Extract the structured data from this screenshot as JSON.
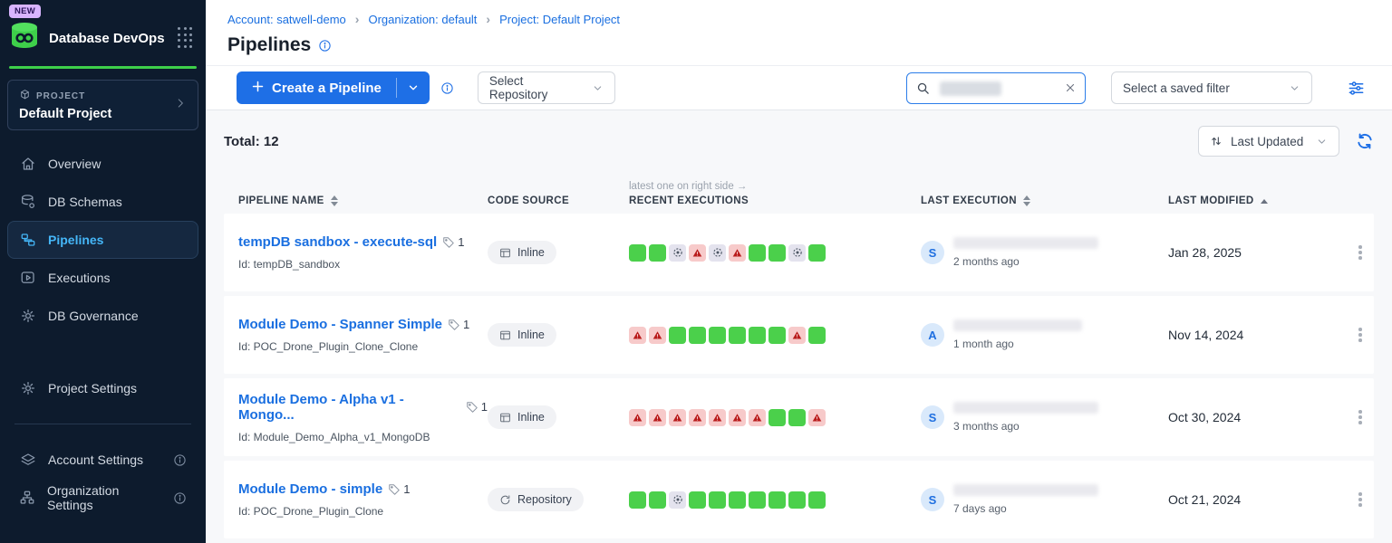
{
  "colors": {
    "sidebar_bg": "#0d1b2d",
    "accent_blue": "#1e6fe6",
    "link_blue": "#1a6fe0",
    "brand_green": "#3ed04a",
    "active_blue": "#45b6f7",
    "badge_bg": "#d8b4fe",
    "badge_text": "#2a1458",
    "success_green": "#4bd04b",
    "fail_bg": "#f7caca",
    "fail_red": "#b91c1c",
    "skip_bg": "#e4e3ee",
    "skip_fg": "#4b5563"
  },
  "sidebar": {
    "badge": "NEW",
    "app_title": "Database DevOps",
    "project": {
      "label": "PROJECT",
      "name": "Default Project"
    },
    "nav": [
      {
        "label": "Overview"
      },
      {
        "label": "DB Schemas"
      },
      {
        "label": "Pipelines"
      },
      {
        "label": "Executions"
      },
      {
        "label": "DB Governance"
      }
    ],
    "nav2": [
      {
        "label": "Project Settings"
      }
    ],
    "nav3": [
      {
        "label": "Account Settings"
      },
      {
        "label": "Organization Settings"
      }
    ]
  },
  "header": {
    "breadcrumbs": [
      {
        "label": "Account: satwell-demo"
      },
      {
        "label": "Organization: default"
      },
      {
        "label": "Project: Default Project"
      }
    ],
    "title": "Pipelines"
  },
  "toolbar": {
    "create_label": "Create a Pipeline",
    "repo_select": "Select Repository",
    "filter_select": "Select a saved filter"
  },
  "list": {
    "total": "Total: 12",
    "sort": "Last Updated",
    "note": "latest one on right side →",
    "columns": {
      "name": "PIPELINE NAME",
      "source": "CODE SOURCE",
      "executions": "RECENT EXECUTIONS",
      "last_execution": "LAST EXECUTION",
      "last_modified": "LAST MODIFIED"
    },
    "rows": [
      {
        "name": "tempDB sandbox - execute-sql",
        "tag_count": "1",
        "id": "Id: tempDB_sandbox",
        "source": "Inline",
        "executions": [
          "success",
          "success",
          "skipped",
          "failed",
          "skipped",
          "failed",
          "success",
          "success",
          "skipped",
          "success"
        ],
        "avatar": "S",
        "executed_ago": "2 months ago",
        "modified": "Jan 28, 2025"
      },
      {
        "name": "Module Demo - Spanner Simple",
        "tag_count": "1",
        "id": "Id: POC_Drone_Plugin_Clone_Clone",
        "source": "Inline",
        "executions": [
          "failed",
          "failed",
          "success",
          "success",
          "success",
          "success",
          "success",
          "success",
          "failed",
          "success"
        ],
        "avatar": "A",
        "executed_ago": "1 month ago",
        "modified": "Nov 14, 2024"
      },
      {
        "name": "Module Demo - Alpha v1 - Mongo...",
        "tag_count": "1",
        "id": "Id: Module_Demo_Alpha_v1_MongoDB",
        "source": "Inline",
        "executions": [
          "failed",
          "failed",
          "failed",
          "failed",
          "failed",
          "failed",
          "failed",
          "success",
          "success",
          "failed"
        ],
        "avatar": "S",
        "executed_ago": "3 months ago",
        "modified": "Oct 30, 2024"
      },
      {
        "name": "Module Demo - simple",
        "tag_count": "1",
        "id": "Id: POC_Drone_Plugin_Clone",
        "source": "Repository",
        "executions": [
          "success",
          "success",
          "skipped",
          "success",
          "success",
          "success",
          "success",
          "success",
          "success",
          "success"
        ],
        "avatar": "S",
        "executed_ago": "7 days ago",
        "modified": "Oct 21, 2024"
      }
    ]
  }
}
